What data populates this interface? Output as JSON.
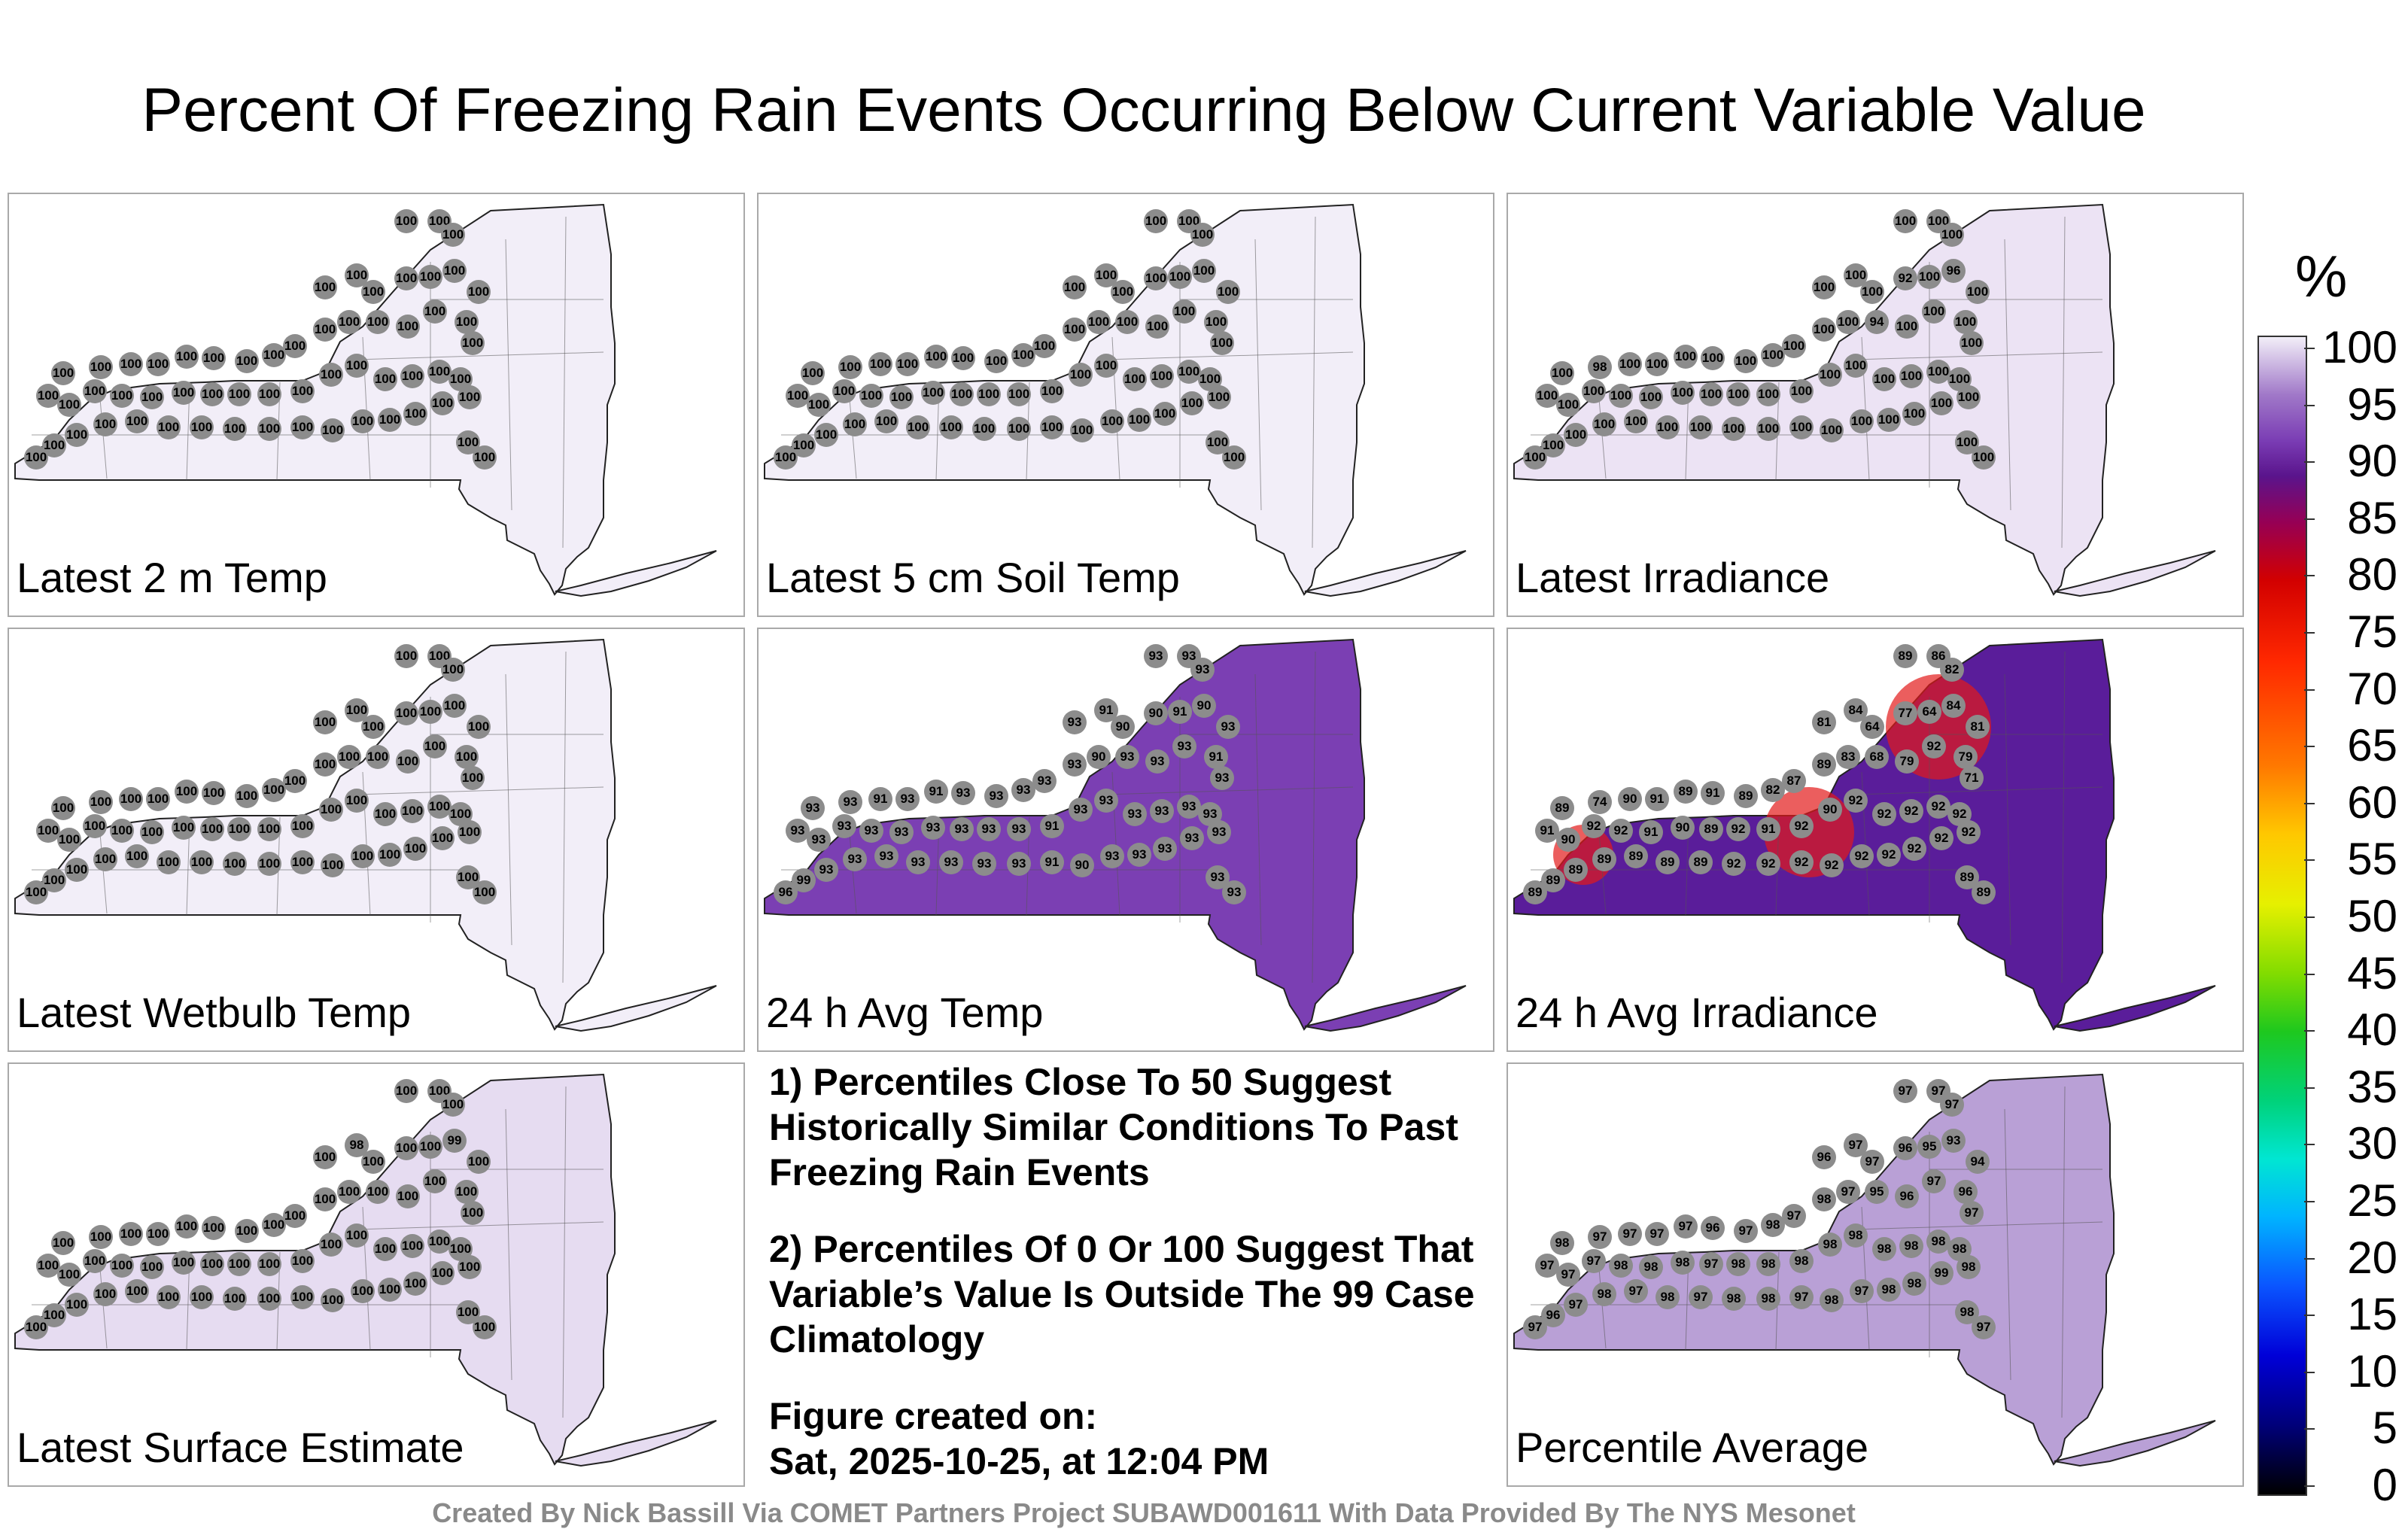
{
  "title": "Percent Of Freezing Rain Events Occurring Below Current Variable Value",
  "colorbar": {
    "unit": "%",
    "ticks": [
      "100",
      "95",
      "90",
      "85",
      "80",
      "75",
      "70",
      "65",
      "60",
      "55",
      "50",
      "45",
      "40",
      "35",
      "30",
      "25",
      "20",
      "15",
      "10",
      "5",
      "0"
    ]
  },
  "panels": [
    {
      "label": "Latest 2 m Temp",
      "fill": "#f2eef8",
      "default_value": "100"
    },
    {
      "label": "Latest 5 cm Soil Temp",
      "fill": "#f2eef8",
      "default_value": "100"
    },
    {
      "label": "Latest Irradiance",
      "fill": "#ece3f4",
      "default_value": "100"
    },
    {
      "label": "Latest Wetbulb Temp",
      "fill": "#f2eef8",
      "default_value": "100"
    },
    {
      "label": "24 h Avg Temp",
      "fill": "#7b3fb3",
      "default_value": "93"
    },
    {
      "label": "24 h Avg Irradiance",
      "fill": "#5a1d9a",
      "default_value": "90"
    },
    {
      "label": "Latest Surface Estimate",
      "fill": "#e6dcf1",
      "default_value": "100"
    },
    {
      "label": "Percentile Average",
      "fill": "#b9a0d6",
      "default_value": "97"
    }
  ],
  "notes": {
    "n1": "1) Percentiles Close To 50 Suggest Historically Similar Conditions To Past Freezing Rain Events",
    "n2": "2) Percentiles Of 0 Or 100 Suggest That Variable’s Value Is Outside The 99 Case Climatology",
    "created_label": "Figure created on:",
    "created_date": "Sat, 2025-10-25, at 12:04 PM"
  },
  "credit": "Created By Nick Bassill Via COMET Partners Project SUBAWD001611 With Data Provided By The NYS Mesonet",
  "stations": {
    "p1": [
      "100",
      "100",
      "100",
      "100",
      "100",
      "100",
      "100",
      "100",
      "100",
      "100",
      "100",
      "100",
      "100",
      "100",
      "100",
      "100",
      "100",
      "100",
      "100",
      "100",
      "100",
      "100",
      "100",
      "100",
      "100",
      "100",
      "100",
      "100",
      "100",
      "100",
      "100",
      "100",
      "100",
      "100",
      "100",
      "100",
      "100",
      "100",
      "100",
      "100",
      "100",
      "100",
      "100",
      "100",
      "100",
      "100",
      "100",
      "100",
      "100",
      "100",
      "100",
      "100",
      "100",
      "100",
      "100",
      "100",
      "100",
      "100",
      "100",
      "100"
    ],
    "p2": [
      "100",
      "100",
      "100",
      "100",
      "100",
      "100",
      "100",
      "100",
      "100",
      "100",
      "100",
      "100",
      "100",
      "100",
      "100",
      "100",
      "100",
      "100",
      "100",
      "100",
      "100",
      "100",
      "100",
      "100",
      "100",
      "100",
      "100",
      "100",
      "100",
      "100",
      "100",
      "100",
      "100",
      "100",
      "100",
      "100",
      "100",
      "100",
      "100",
      "100",
      "100",
      "100",
      "100",
      "100",
      "100",
      "100",
      "100",
      "100",
      "100",
      "100",
      "100",
      "100",
      "100",
      "100",
      "100",
      "100",
      "100",
      "100",
      "100",
      "100"
    ],
    "p3": [
      "100",
      "100",
      "100",
      "100",
      "100",
      "100",
      "92",
      "100",
      "96",
      "100",
      "100",
      "100",
      "100",
      "100",
      "94",
      "100",
      "100",
      "100",
      "100",
      "100",
      "100",
      "100",
      "100",
      "100",
      "98",
      "100",
      "100",
      "100",
      "100",
      "100",
      "100",
      "100",
      "100",
      "100",
      "100",
      "100",
      "100",
      "100",
      "100",
      "100",
      "100",
      "100",
      "100",
      "100",
      "100",
      "100",
      "100",
      "100",
      "100",
      "100",
      "100",
      "100",
      "100",
      "100",
      "100",
      "100",
      "100",
      "100",
      "100",
      "100"
    ],
    "p4": [
      "100",
      "100",
      "100",
      "100",
      "100",
      "100",
      "100",
      "100",
      "100",
      "100",
      "100",
      "100",
      "100",
      "100",
      "100",
      "100",
      "100",
      "100",
      "100",
      "100",
      "100",
      "100",
      "100",
      "100",
      "100",
      "100",
      "100",
      "100",
      "100",
      "100",
      "100",
      "100",
      "100",
      "100",
      "100",
      "100",
      "100",
      "100",
      "100",
      "100",
      "100",
      "100",
      "100",
      "100",
      "100",
      "100",
      "100",
      "100",
      "100",
      "100",
      "100",
      "100",
      "100",
      "100",
      "100",
      "100",
      "100",
      "100",
      "100",
      "100"
    ],
    "p5": [
      "93",
      "93",
      "93",
      "93",
      "91",
      "90",
      "90",
      "91",
      "90",
      "93",
      "93",
      "91",
      "93",
      "93",
      "93",
      "90",
      "93",
      "93",
      "93",
      "93",
      "93",
      "91",
      "93",
      "91",
      "93",
      "93",
      "93",
      "93",
      "93",
      "93",
      "93",
      "93",
      "93",
      "93",
      "93",
      "91",
      "93",
      "93",
      "93",
      "93",
      "93",
      "93",
      "93",
      "93",
      "93",
      "93",
      "93",
      "90",
      "91",
      "93",
      "93",
      "93",
      "93",
      "93",
      "93",
      "93",
      "99",
      "96",
      "93",
      "93"
    ],
    "p6": [
      "89",
      "86",
      "82",
      "81",
      "84",
      "64",
      "77",
      "64",
      "84",
      "81",
      "92",
      "79",
      "71",
      "79",
      "68",
      "83",
      "89",
      "87",
      "82",
      "89",
      "91",
      "89",
      "91",
      "90",
      "74",
      "89",
      "91",
      "90",
      "92",
      "92",
      "91",
      "90",
      "89",
      "92",
      "91",
      "92",
      "90",
      "92",
      "92",
      "92",
      "92",
      "92",
      "92",
      "92",
      "92",
      "92",
      "92",
      "92",
      "92",
      "92",
      "92",
      "89",
      "89",
      "89",
      "89",
      "89",
      "89",
      "89",
      "89",
      "89"
    ],
    "p7": [
      "100",
      "100",
      "100",
      "100",
      "98",
      "100",
      "100",
      "100",
      "99",
      "100",
      "100",
      "100",
      "100",
      "100",
      "100",
      "100",
      "100",
      "100",
      "100",
      "100",
      "100",
      "100",
      "100",
      "100",
      "100",
      "100",
      "100",
      "100",
      "100",
      "100",
      "100",
      "100",
      "100",
      "100",
      "100",
      "100",
      "100",
      "100",
      "100",
      "100",
      "100",
      "100",
      "100",
      "100",
      "100",
      "100",
      "100",
      "100",
      "100",
      "100",
      "100",
      "100",
      "100",
      "100",
      "100",
      "100",
      "100",
      "100",
      "100",
      "100"
    ],
    "p8": [
      "97",
      "97",
      "97",
      "96",
      "97",
      "97",
      "96",
      "95",
      "93",
      "94",
      "97",
      "96",
      "97",
      "96",
      "95",
      "97",
      "98",
      "97",
      "98",
      "97",
      "96",
      "97",
      "97",
      "97",
      "97",
      "98",
      "97",
      "97",
      "97",
      "98",
      "98",
      "98",
      "97",
      "98",
      "98",
      "98",
      "98",
      "98",
      "98",
      "98",
      "98",
      "98",
      "98",
      "99",
      "98",
      "98",
      "97",
      "98",
      "97",
      "98",
      "98",
      "97",
      "98",
      "97",
      "98",
      "97",
      "96",
      "97",
      "98",
      "97"
    ]
  }
}
